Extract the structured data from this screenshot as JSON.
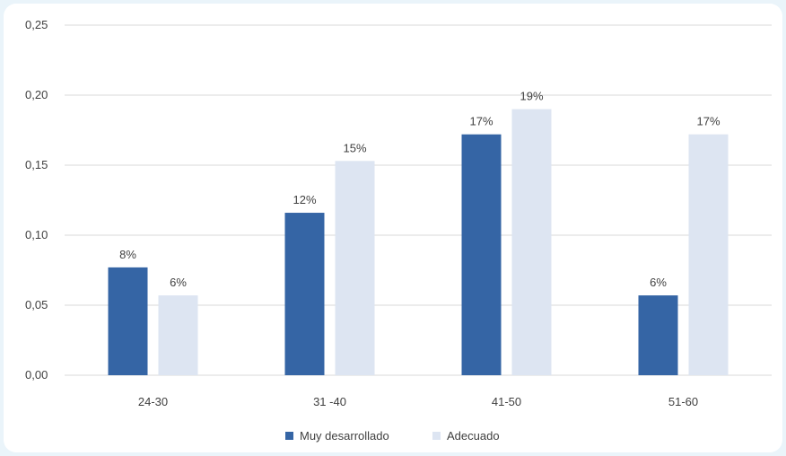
{
  "chart_data": {
    "type": "bar",
    "categories": [
      "24-30",
      "31 -40",
      "41-50",
      "51-60"
    ],
    "series": [
      {
        "name": "Muy desarrollado",
        "values": [
          0.077,
          0.116,
          0.172,
          0.057
        ],
        "labels": [
          "8%",
          "12%",
          "17%",
          "6%"
        ],
        "color": "#3565a5"
      },
      {
        "name": "Adecuado",
        "values": [
          0.057,
          0.153,
          0.19,
          0.172
        ],
        "labels": [
          "6%",
          "15%",
          "19%",
          "17%"
        ],
        "color": "#dde5f2"
      }
    ],
    "y_ticks": [
      "0,00",
      "0,05",
      "0,10",
      "0,15",
      "0,20",
      "0,25"
    ],
    "ylim": [
      0,
      0.25
    ],
    "grid": true,
    "legend_position": "bottom"
  },
  "colors": {
    "background": "#eaf4fa",
    "card": "#ffffff",
    "gridline": "#d9d9d9",
    "text": "#404040"
  }
}
